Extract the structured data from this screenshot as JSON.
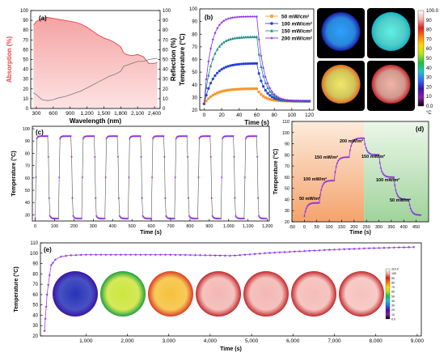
{
  "chart_data": [
    {
      "panel": "(a)",
      "type": "area",
      "xlabel": "Wavelength (nm)",
      "ylabel_left": "Absorption (%)",
      "ylabel_right": "Reflection (%)",
      "xlim": [
        200,
        2500
      ],
      "ylim_left": [
        0,
        100
      ],
      "ylim_right": [
        0,
        100
      ],
      "xticks": [
        300,
        600,
        900,
        1200,
        1500,
        1800,
        2100,
        2400
      ],
      "xticklabels": [
        "300",
        "600",
        "900",
        "1,200",
        "1,500",
        "1,800",
        "2,100",
        "2,400"
      ],
      "yticks_left": [
        0,
        10,
        20,
        30,
        40,
        50,
        60,
        70,
        80,
        90,
        100
      ],
      "yticks_right": [
        0,
        10,
        20,
        30,
        40,
        50,
        60,
        70,
        80,
        90,
        100
      ],
      "colors": {
        "absorption": "#e8474b",
        "absorption_fill": "#f7c2c2",
        "reflection": "#7a7a7a"
      },
      "series": [
        {
          "name": "Absorption",
          "x": [
            250,
            300,
            400,
            500,
            600,
            700,
            800,
            900,
            1000,
            1100,
            1200,
            1300,
            1400,
            1500,
            1600,
            1700,
            1800,
            1850,
            1900,
            2000,
            2100,
            2200,
            2300,
            2400,
            2450
          ],
          "y": [
            85,
            89,
            92,
            93,
            92,
            91,
            90,
            89,
            88,
            86,
            83,
            79,
            75,
            72,
            70,
            67,
            63,
            57,
            55,
            54,
            55,
            53,
            46,
            46,
            47
          ]
        },
        {
          "name": "Reflection",
          "x": [
            250,
            300,
            400,
            500,
            600,
            700,
            800,
            900,
            1000,
            1100,
            1200,
            1300,
            1400,
            1500,
            1600,
            1700,
            1800,
            1850,
            1900,
            2000,
            2100,
            2200,
            2300,
            2400,
            2450
          ],
          "y": [
            16,
            14,
            9,
            8,
            9,
            11,
            12,
            14,
            16,
            18,
            21,
            24,
            27,
            30,
            33,
            35,
            38,
            43,
            44,
            46,
            48,
            48,
            50,
            51,
            51
          ]
        }
      ]
    },
    {
      "panel": "(b)",
      "type": "line",
      "xlabel": "Time (s)",
      "ylabel": "Temperature (°C)",
      "xlim": [
        -5,
        125
      ],
      "ylim": [
        20,
        100
      ],
      "xticks": [
        0,
        20,
        40,
        60,
        80,
        100,
        120
      ],
      "yticks": [
        20,
        30,
        40,
        50,
        60,
        70,
        80,
        90,
        100
      ],
      "series": [
        {
          "name": "50 mW/cm²",
          "color": "#f59a2b",
          "marker": "square",
          "plateau": 37
        },
        {
          "name": "100 mW/cm²",
          "color": "#2a3fd6",
          "marker": "circle",
          "plateau": 57
        },
        {
          "name": "150 mW/cm²",
          "color": "#1e8f8a",
          "marker": "triangle",
          "plateau": 78
        },
        {
          "name": "200 mW/cm²",
          "color": "#8a2be2",
          "marker": "star",
          "plateau": 94
        }
      ],
      "on_duration": 60,
      "start_temp": 25,
      "final_temp": 27
    },
    {
      "panel": "thermal-images",
      "type": "heatmap",
      "images": [
        {
          "label": "50 mW/cm²",
          "center": "#2fa0ff",
          "edge": "#1c1aa8"
        },
        {
          "label": "100 mW/cm²",
          "center": "#5ef0e8",
          "edge": "#16b3c2"
        },
        {
          "label": "150 mW/cm²",
          "center": "#f3e86a",
          "edge": "#e26a22"
        },
        {
          "label": "200 mW/cm²",
          "center": "#f3b4a8",
          "edge": "#c62226"
        }
      ],
      "colorbar": {
        "ticks": [
          "100.0",
          "90",
          "80",
          "70",
          "60",
          "50",
          "40",
          "30",
          "20",
          "10",
          "0.0"
        ],
        "unit": "°C"
      }
    },
    {
      "panel": "(c)",
      "type": "line",
      "xlabel": "Time (s)",
      "ylabel": "Temperature (°C)",
      "xlim": [
        -15,
        1210
      ],
      "ylim": [
        25,
        102
      ],
      "xticks": [
        0,
        100,
        200,
        300,
        400,
        500,
        600,
        700,
        800,
        900,
        1000,
        1100,
        1200
      ],
      "xticklabels": [
        "0",
        "100",
        "200",
        "300",
        "400",
        "500",
        "600",
        "700",
        "800",
        "900",
        "1,000",
        "1,100",
        "1,200"
      ],
      "yticks": [
        30,
        40,
        50,
        60,
        70,
        80,
        90,
        100
      ],
      "color": "#8a2be2",
      "cycles": 10,
      "cycle_period": 120,
      "high": 94,
      "low": 27
    },
    {
      "panel": "(d)",
      "type": "line",
      "xlabel": "Time (s)",
      "ylabel": "Temperature (°C)",
      "xlim": [
        -50,
        500
      ],
      "ylim": [
        20,
        110
      ],
      "xticks": [
        -50,
        0,
        50,
        100,
        150,
        200,
        250,
        300,
        350,
        400,
        450
      ],
      "yticks": [
        20,
        30,
        40,
        50,
        60,
        70,
        80,
        90,
        100,
        110
      ],
      "color": "#8a2be2",
      "heating_region": [
        -50,
        240
      ],
      "cooling_region": [
        240,
        500
      ],
      "annotations": [
        "50 mW/m²",
        "100 mW/m²",
        "150 mW/m²",
        "200 mW/m²",
        "150 mW/m²",
        "100 mW/m²",
        "50 mW/m²"
      ],
      "segment_plateaus": [
        37,
        57,
        78,
        95,
        80,
        60,
        40,
        26
      ]
    },
    {
      "panel": "(e)",
      "type": "line",
      "xlabel": "Time (s)",
      "ylabel": "Temperature (°C)",
      "xlim": [
        -100,
        9100
      ],
      "ylim": [
        20,
        110
      ],
      "xticks": [
        1000,
        2000,
        3000,
        4000,
        5000,
        6000,
        7000,
        8000,
        9000
      ],
      "xticklabels": [
        "1,000",
        "2,000",
        "3,000",
        "4,000",
        "5,000",
        "6,000",
        "7,000",
        "8,000",
        "9,000"
      ],
      "yticks": [
        20,
        30,
        40,
        50,
        60,
        70,
        80,
        90,
        100,
        110
      ],
      "color": "#8a2be2",
      "x": [
        0,
        60,
        150,
        300,
        600,
        1000,
        2000,
        3000,
        4000,
        4500,
        5000,
        5500,
        6000,
        6500,
        7000,
        8000,
        9000
      ],
      "y": [
        25,
        60,
        88,
        96,
        98,
        98.5,
        98.5,
        98.5,
        98,
        97.5,
        99,
        100.5,
        101.5,
        102.5,
        103.5,
        105,
        106
      ],
      "thermal_images": [
        {
          "center": "#2733b8",
          "edge": "#3a14a6"
        },
        {
          "center": "#cde63c",
          "edge": "#1e9e3e"
        },
        {
          "center": "#f6c13c",
          "edge": "#dc3a22"
        },
        {
          "center": "#f3b7b2",
          "edge": "#c2252a"
        },
        {
          "center": "#f3b7b2",
          "edge": "#c2252a"
        },
        {
          "center": "#f5bcb7",
          "edge": "#c2252a"
        },
        {
          "center": "#f6c2bd",
          "edge": "#c2252a"
        }
      ],
      "colorbar_ticks": [
        "110.0",
        "100",
        "90",
        "80",
        "70",
        "60",
        "50",
        "40",
        "30",
        "20",
        "10",
        "0.0"
      ]
    }
  ]
}
